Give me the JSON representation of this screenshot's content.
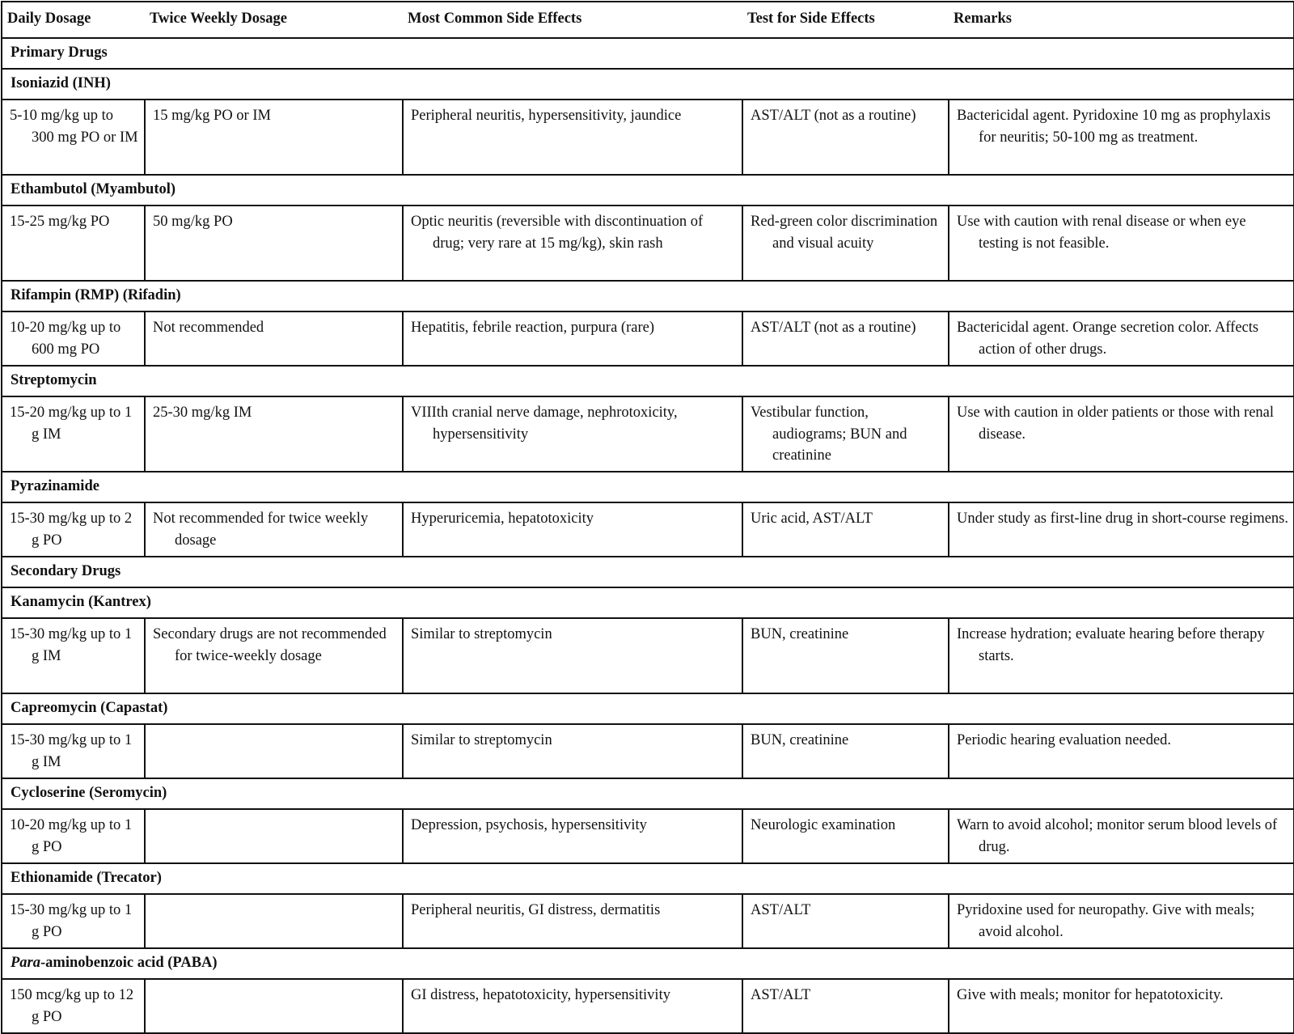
{
  "headers": [
    "Daily Dosage",
    "Twice Weekly Dosage",
    "Most Common Side Effects",
    "Test for Side Effects",
    "Remarks"
  ],
  "sections": [
    {
      "label": "Primary Drugs",
      "drugs": [
        {
          "name": "Isoniazid (INH)",
          "cells": [
            "5-10 mg/kg up to 300 mg PO or IM",
            "15 mg/kg PO or IM",
            "Peripheral neuritis, hypersensitivity, jaundice",
            "AST/ALT (not as a routine)",
            "Bactericidal agent. Pyridoxine 10 mg as prophylaxis for neuritis; 50-100 mg as treatment."
          ],
          "lines": 3
        },
        {
          "name": "Ethambutol (Myambutol)",
          "cells": [
            "15-25 mg/kg PO",
            "50 mg/kg PO",
            "Optic neuritis (reversible with discontinuation of drug; very rare at 15 mg/kg), skin rash",
            "Red-green color discrimination and visual acuity",
            "Use with caution with renal disease or when eye testing is not feasible."
          ],
          "lines": 3
        },
        {
          "name": "Rifampin (RMP) (Rifadin)",
          "cells": [
            "10-20 mg/kg up to 600 mg PO",
            "Not recommended",
            "Hepatitis, febrile reaction, purpura (rare)",
            "AST/ALT (not as a routine)",
            "Bactericidal agent. Orange secretion color. Affects action of other drugs."
          ],
          "lines": 2
        },
        {
          "name": "Streptomycin",
          "cells": [
            "15-20 mg/kg up to 1 g IM",
            "25-30 mg/kg IM",
            "VIIIth cranial nerve damage, nephrotoxicity, hypersensitivity",
            "Vestibular function, audiograms; BUN and creatinine",
            "Use with caution in older patients or those with renal disease."
          ],
          "lines": 3
        },
        {
          "name": "Pyrazinamide",
          "cells": [
            "15-30 mg/kg up to 2 g PO",
            "Not recommended for twice weekly dosage",
            "Hyperuricemia, hepatotoxicity",
            "Uric acid, AST/ALT",
            "Under study as first-line drug in short-course regimens."
          ],
          "lines": 2
        }
      ]
    },
    {
      "label": "Secondary Drugs",
      "drugs": [
        {
          "name": "Kanamycin (Kantrex)",
          "cells": [
            "15-30 mg/kg up to 1 g IM",
            "Secondary drugs are not recommended for twice-weekly dosage",
            "Similar to streptomycin",
            "BUN, creatinine",
            "Increase hydration; evaluate hearing before therapy starts."
          ],
          "lines": 3
        },
        {
          "name": "Capreomycin (Capastat)",
          "cells": [
            "15-30 mg/kg up to 1 g IM",
            "",
            "Similar to streptomycin",
            "BUN, creatinine",
            "Periodic hearing evaluation needed."
          ],
          "lines": 2
        },
        {
          "name": "Cycloserine (Seromycin)",
          "cells": [
            "10-20 mg/kg up to 1 g PO",
            "",
            "Depression, psychosis, hypersensitivity",
            "Neurologic examination",
            "Warn to avoid alcohol; monitor serum blood levels of drug."
          ],
          "lines": 2
        },
        {
          "name": "Ethionamide (Trecator)",
          "cells": [
            "15-30 mg/kg up to 1 g PO",
            "",
            "Peripheral neuritis, GI distress, dermatitis",
            "AST/ALT",
            "Pyridoxine used for neuropathy. Give with meals; avoid alcohol."
          ],
          "lines": 2
        },
        {
          "name": "Para-aminobenzoic acid (PABA)",
          "italic_prefix": "Para",
          "rest": "-aminobenzoic acid (PABA)",
          "cells": [
            "150 mcg/kg up to 12 g PO",
            "",
            "GI distress, hepatotoxicity, hypersensitivity",
            "AST/ALT",
            "Give with meals; monitor for hepatotoxicity."
          ],
          "lines": 2
        }
      ]
    }
  ]
}
